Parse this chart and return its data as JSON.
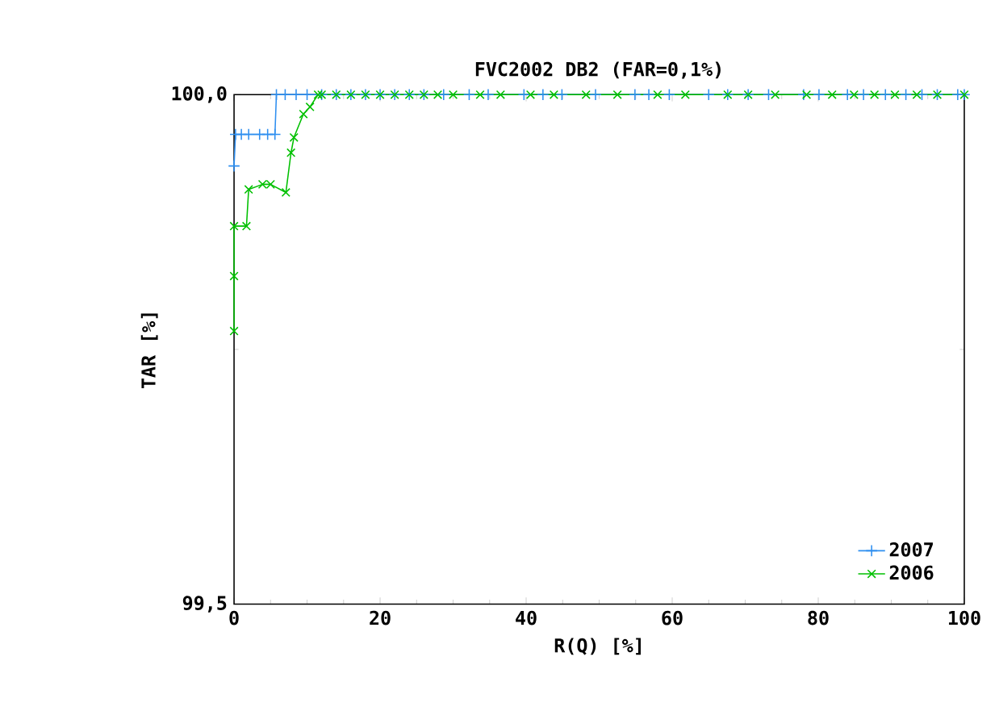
{
  "chart_data": {
    "type": "line",
    "title": "FVC2002 DB2 (FAR=0,1%)",
    "xlabel": "R(Q) [%]",
    "ylabel": "TAR [%]",
    "xlim": [
      0,
      100
    ],
    "ylim": [
      99.5,
      100
    ],
    "xticks": [
      0,
      20,
      40,
      60,
      80,
      100
    ],
    "yticks": [
      {
        "value": 99.5,
        "label": "99,5"
      },
      {
        "value": 100,
        "label": "100,0"
      }
    ],
    "legend": "bottom right",
    "grid": false,
    "series": [
      {
        "name": "2007",
        "color": "#2f8ff0",
        "marker": "plus",
        "x": [
          0,
          0.2,
          1,
          2,
          3.5,
          4.6,
          5.6,
          5.8,
          7,
          8.5,
          10,
          12,
          14,
          16,
          18,
          20,
          22,
          24,
          26,
          28.7,
          32.2,
          34.8,
          39.7,
          42.3,
          44.9,
          49.5,
          54.9,
          56.8,
          59.6,
          65,
          67.6,
          70.4,
          73.2,
          78,
          80.1,
          84,
          86.2,
          89.2,
          92,
          94.2,
          96.3,
          99.1,
          100
        ],
        "values": [
          99.93,
          99.961,
          99.961,
          99.961,
          99.961,
          99.961,
          99.961,
          100,
          100,
          100,
          100,
          100,
          100,
          100,
          100,
          100,
          100,
          100,
          100,
          100,
          100,
          100,
          100,
          100,
          100,
          100,
          100,
          100,
          100,
          100,
          100,
          100,
          100,
          100,
          100,
          100,
          100,
          100,
          100,
          100,
          100,
          100,
          100
        ]
      },
      {
        "name": "2006",
        "color": "#00c000",
        "marker": "cross",
        "x": [
          0,
          0,
          0,
          1.7,
          2,
          3.9,
          5,
          7.1,
          7.8,
          8.2,
          9.5,
          10.4,
          11.5,
          12,
          14,
          16,
          18,
          20,
          22,
          24,
          26,
          27.9,
          30,
          33.7,
          36.5,
          40.6,
          43.8,
          48.2,
          52.5,
          58,
          61.8,
          67.6,
          70.4,
          74.1,
          78.4,
          81.9,
          84.9,
          87.7,
          90.5,
          93.5,
          96.3,
          100
        ],
        "values": [
          99.768,
          99.822,
          99.871,
          99.871,
          99.907,
          99.912,
          99.912,
          99.904,
          99.943,
          99.958,
          99.981,
          99.988,
          100,
          100,
          100,
          100,
          100,
          100,
          100,
          100,
          100,
          100,
          100,
          100,
          100,
          100,
          100,
          100,
          100,
          100,
          100,
          100,
          100,
          100,
          100,
          100,
          100,
          100,
          100,
          100,
          100,
          100
        ]
      }
    ]
  }
}
